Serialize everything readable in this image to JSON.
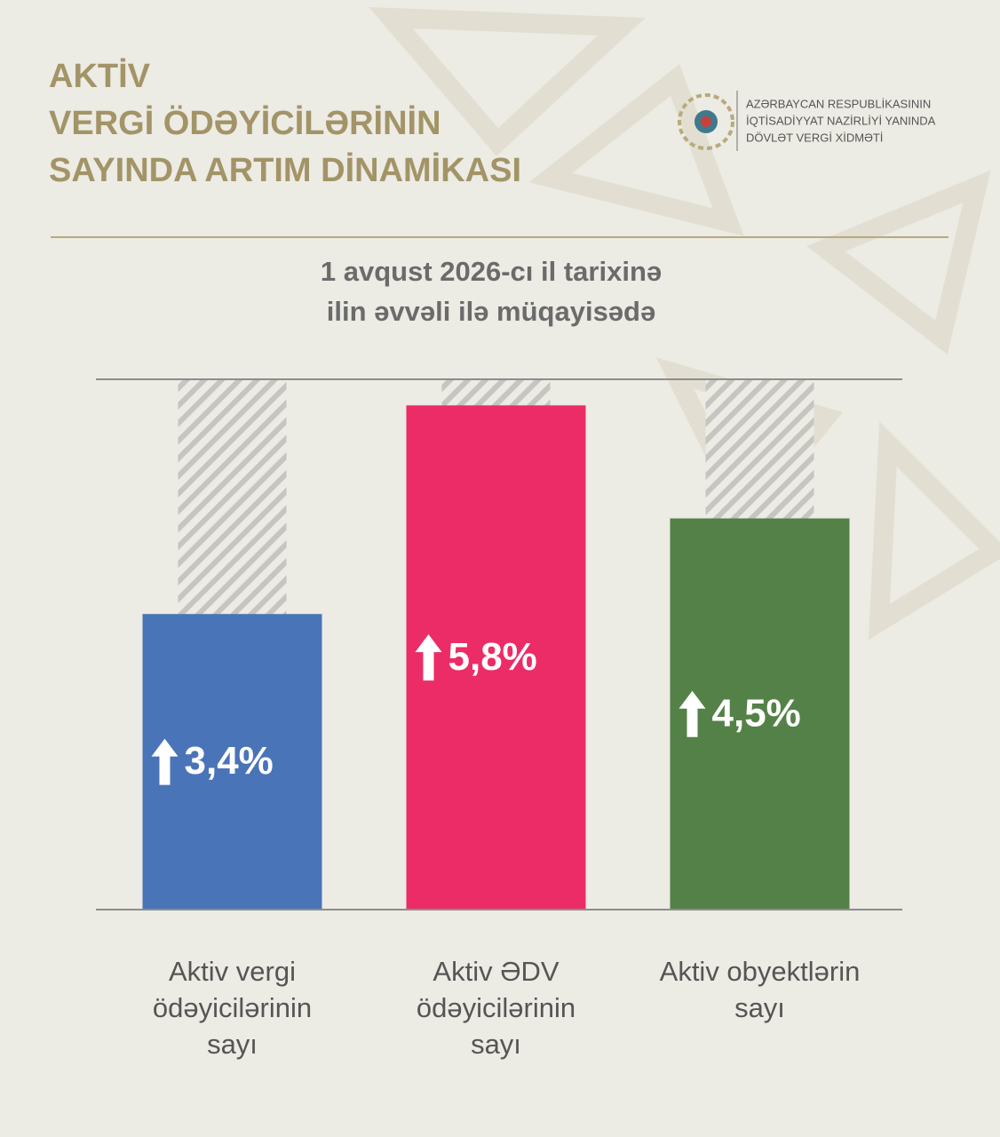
{
  "chart_data": {
    "type": "bar",
    "title": [
      "AKTİV",
      "VERGİ ÖDƏYİCİLƏRİNİN",
      "SAYINDA ARTIM DİNAMİKASI"
    ],
    "subtitle": [
      "1 avqust 2026-cı il tarixinə",
      "ilin əvvəli ilə müqayisədə"
    ],
    "categories": [
      "Aktiv vergi ödəyicilərinin sayı",
      "Aktiv ƏDV ödəyicilərinin sayı",
      "Aktiv obyektlərin sayı"
    ],
    "values": [
      3.4,
      5.8,
      4.5
    ],
    "value_labels": [
      "3,4%",
      "5,8%",
      "4,5%"
    ],
    "colors": [
      "#4a74b8",
      "#eb2c67",
      "#548147"
    ],
    "ylim": [
      0,
      6.1
    ]
  },
  "logo": {
    "lines": [
      "AZƏRBAYCAN RESPUBLİKASININ",
      "İQTİSADİYYAT NAZİRLİYİ YANINDA",
      "DÖVLƏT VERGİ XİDMƏTİ"
    ]
  }
}
